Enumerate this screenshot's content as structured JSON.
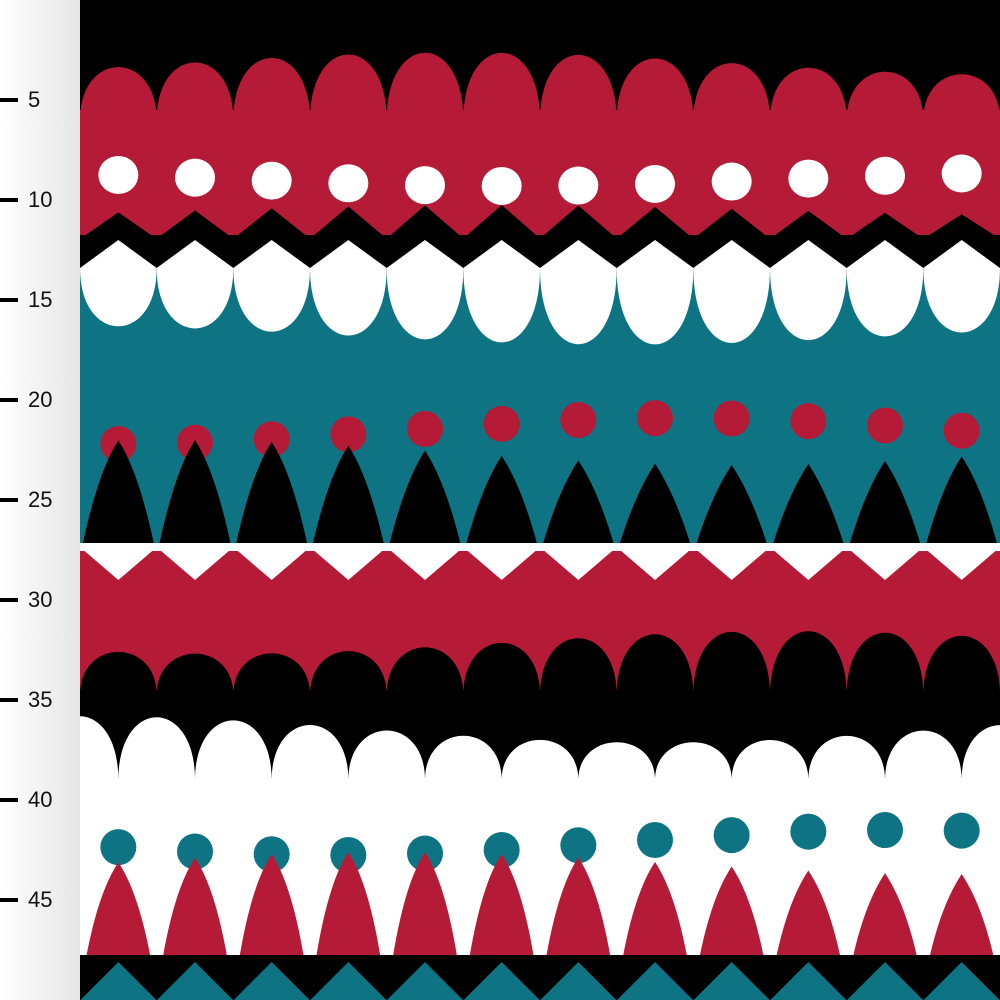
{
  "ruler": {
    "ticks": [
      5,
      10,
      15,
      20,
      25,
      30,
      35,
      40,
      45
    ]
  }
}
